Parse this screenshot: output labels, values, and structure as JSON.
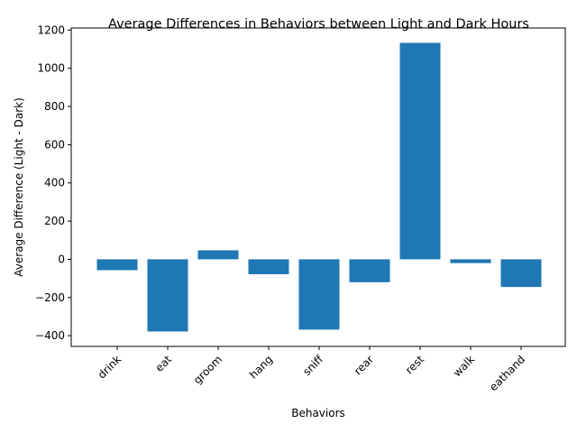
{
  "chart_data": {
    "type": "bar",
    "title": "Average Differences in Behaviors between Light and Dark Hours",
    "xlabel": "Behaviors",
    "ylabel": "Average Difference (Light - Dark)",
    "categories": [
      "drink",
      "eat",
      "groom",
      "hang",
      "sniff",
      "rear",
      "rest",
      "walk",
      "eathand"
    ],
    "values": [
      -57,
      -378,
      47,
      -78,
      -368,
      -120,
      1133,
      -20,
      -145
    ],
    "ylim": [
      -456,
      1211
    ],
    "yticks": [
      -400,
      -200,
      0,
      200,
      400,
      600,
      800,
      1000,
      1200
    ],
    "ytick_labels": [
      "−400",
      "−200",
      "0",
      "200",
      "400",
      "600",
      "800",
      "1000",
      "1200"
    ],
    "bar_color": "#1f77b4",
    "grid": false,
    "legend": "none"
  }
}
